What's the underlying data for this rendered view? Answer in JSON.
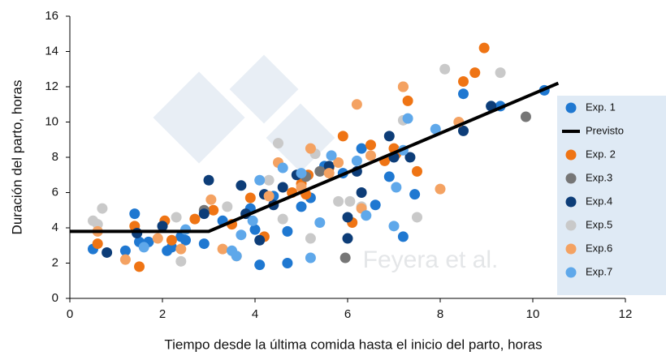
{
  "chart_data": {
    "type": "scatter",
    "xlabel": "Tiempo desde la última comida hasta el inicio del parto, horas",
    "ylabel": "Duración del parto, horas",
    "watermark": "Feyera et al.",
    "xlim": [
      0,
      12
    ],
    "xticks": [
      0,
      2,
      4,
      6,
      8,
      10,
      12
    ],
    "ylim": [
      0,
      16
    ],
    "yticks": [
      0,
      2,
      4,
      6,
      8,
      10,
      12,
      14,
      16
    ],
    "grid": false,
    "legend": "right",
    "series": [
      {
        "name": "Exp. 1",
        "type": "scatter",
        "color": "#1f78d1",
        "x": [
          0.5,
          1.4,
          1.5,
          1.45,
          1.7,
          2.1,
          2.4,
          2.5,
          2.9,
          3.3,
          3.9,
          4.1,
          4.0,
          4.4,
          4.7,
          5.0,
          5.2,
          5.5,
          5.9,
          6.3,
          6.6,
          6.9,
          7.2,
          7.45,
          8.5,
          9.1,
          9.3,
          10.25,
          4.7,
          2.2,
          1.2
        ],
        "y": [
          2.8,
          4.8,
          3.2,
          3.7,
          3.2,
          2.7,
          3.5,
          3.3,
          3.1,
          4.4,
          5.1,
          1.9,
          3.9,
          5.8,
          3.8,
          5.2,
          5.7,
          7.5,
          7.1,
          8.5,
          5.3,
          6.9,
          3.5,
          5.9,
          11.6,
          10.9,
          10.9,
          11.8,
          2.0,
          2.9,
          2.7
        ]
      },
      {
        "name": "Previsto",
        "type": "line",
        "color": "#000000",
        "x": [
          0,
          3,
          10.55
        ],
        "y": [
          3.8,
          3.8,
          12.2
        ]
      },
      {
        "name": "Exp. 2",
        "type": "scatter",
        "color": "#ef7414",
        "x": [
          0.6,
          1.4,
          1.5,
          2.05,
          2.2,
          2.7,
          3.1,
          3.5,
          3.9,
          4.2,
          4.8,
          5.0,
          5.1,
          5.15,
          5.6,
          5.9,
          6.1,
          6.5,
          6.8,
          7.0,
          7.05,
          7.3,
          7.5,
          7.2,
          8.5,
          8.75,
          8.95
        ],
        "y": [
          3.1,
          4.1,
          1.8,
          4.4,
          3.3,
          4.5,
          5.0,
          4.2,
          5.7,
          3.5,
          6.0,
          6.5,
          5.9,
          7.0,
          7.4,
          9.2,
          4.3,
          8.7,
          7.8,
          8.5,
          8.2,
          11.2,
          7.2,
          12.0,
          12.3,
          12.8,
          14.2
        ]
      },
      {
        "name": "Exp.3",
        "type": "scatter",
        "color": "#767676",
        "x": [
          2.9,
          5.1,
          5.4,
          5.95,
          9.85
        ],
        "y": [
          5.0,
          6.9,
          7.2,
          2.3,
          10.3
        ]
      },
      {
        "name": "Exp.4",
        "type": "scatter",
        "color": "#0d3d78",
        "x": [
          0.8,
          1.45,
          2.0,
          2.9,
          3.0,
          3.7,
          4.1,
          4.4,
          4.6,
          4.9,
          5.6,
          6.0,
          6.0,
          6.2,
          6.3,
          6.9,
          7.0,
          7.35,
          8.5,
          9.1,
          3.8,
          4.2
        ],
        "y": [
          2.6,
          3.7,
          4.1,
          4.8,
          6.7,
          6.4,
          3.3,
          5.3,
          6.3,
          7.0,
          7.5,
          3.4,
          4.6,
          7.2,
          6.0,
          9.2,
          8.0,
          8.0,
          9.5,
          10.9,
          4.8,
          5.9
        ]
      },
      {
        "name": "Exp.5",
        "type": "scatter",
        "color": "#c9c9c9",
        "x": [
          0.5,
          0.7,
          0.6,
          2.3,
          2.4,
          3.4,
          4.3,
          4.5,
          4.6,
          5.2,
          5.3,
          5.8,
          6.05,
          6.3,
          7.5,
          8.1,
          9.3,
          7.2
        ],
        "y": [
          4.4,
          5.1,
          4.2,
          4.6,
          2.1,
          5.2,
          6.7,
          8.8,
          4.5,
          3.4,
          8.2,
          5.5,
          5.5,
          5.2,
          4.6,
          13.0,
          12.8,
          10.1
        ]
      },
      {
        "name": "Exp.6",
        "type": "scatter",
        "color": "#f4a262",
        "x": [
          0.6,
          1.2,
          1.9,
          2.4,
          3.05,
          3.3,
          3.6,
          4.3,
          4.5,
          5.2,
          5.6,
          5.8,
          6.2,
          6.3,
          6.5,
          7.2,
          8.0,
          8.4,
          5.0
        ],
        "y": [
          3.8,
          2.2,
          3.4,
          2.8,
          5.6,
          2.8,
          2.4,
          5.8,
          7.7,
          8.5,
          7.1,
          7.7,
          11.0,
          5.1,
          8.1,
          12.0,
          6.2,
          10.0,
          6.3
        ]
      },
      {
        "name": "Exp.7",
        "type": "scatter",
        "color": "#5fa8ea",
        "x": [
          1.6,
          2.5,
          3.5,
          3.7,
          3.95,
          4.1,
          4.6,
          5.0,
          5.4,
          5.65,
          6.2,
          6.4,
          7.2,
          7.05,
          7.3,
          7.9,
          7.0,
          5.2,
          3.6
        ],
        "y": [
          2.9,
          3.9,
          2.7,
          3.6,
          4.4,
          6.7,
          7.4,
          7.1,
          4.3,
          8.1,
          7.8,
          4.7,
          8.4,
          6.3,
          10.2,
          9.6,
          4.1,
          2.3,
          2.4
        ]
      }
    ]
  }
}
